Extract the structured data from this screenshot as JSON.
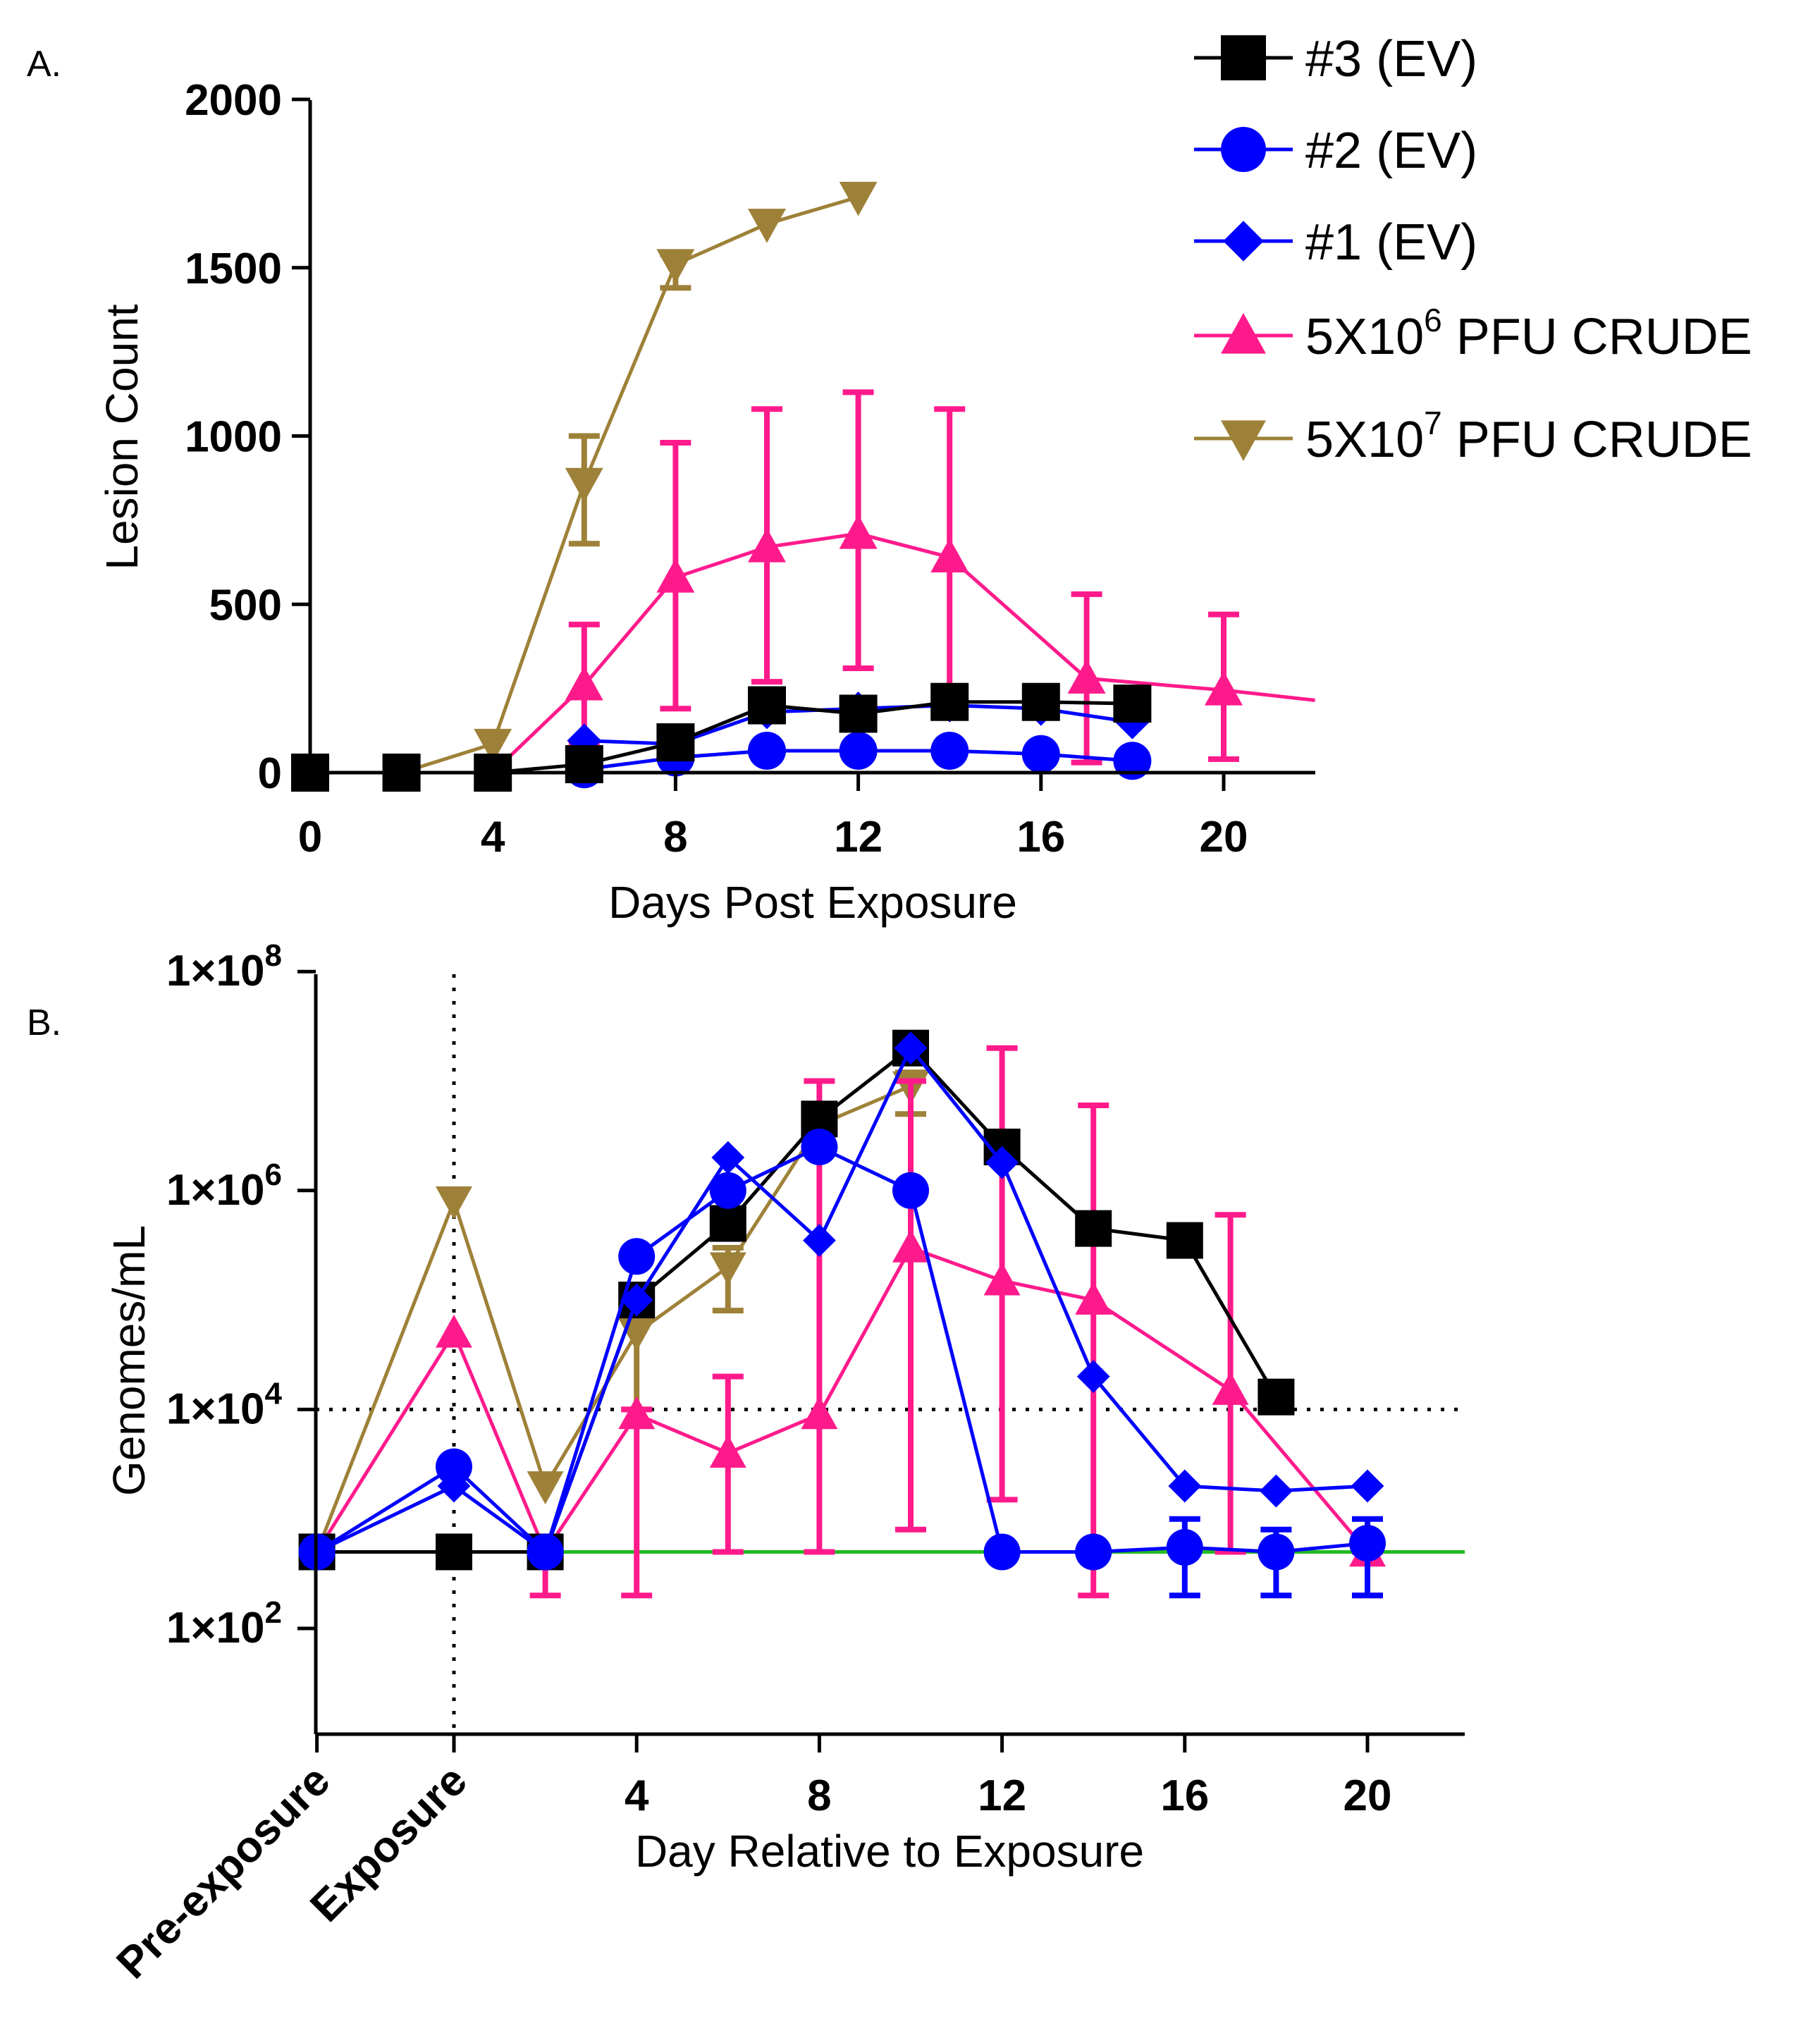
{
  "chart_data": [
    {
      "panel": "A.",
      "type": "line",
      "xlabel": "Days Post Exposure",
      "ylabel": "Lesion Count",
      "xlim": [
        0,
        22
      ],
      "ylim": [
        0,
        2000
      ],
      "xticks": [
        0,
        4,
        8,
        12,
        16,
        20
      ],
      "yticks": [
        0,
        500,
        1000,
        1500,
        2000
      ],
      "legend_position": "top-right",
      "series": [
        {
          "name": "#3 (EV)",
          "marker": "square",
          "color": "#000000",
          "points": [
            [
              0,
              0
            ],
            [
              2,
              0
            ],
            [
              4,
              0
            ],
            [
              6,
              25
            ],
            [
              8,
              90
            ],
            [
              10,
              200
            ],
            [
              12,
              175
            ],
            [
              14,
              210
            ],
            [
              16,
              210
            ],
            [
              18,
              205
            ]
          ]
        },
        {
          "name": "#2 (EV)",
          "marker": "circle",
          "color": "#0000ff",
          "points": [
            [
              6,
              10
            ],
            [
              8,
              45
            ],
            [
              10,
              65
            ],
            [
              12,
              65
            ],
            [
              14,
              65
            ],
            [
              16,
              55
            ],
            [
              18,
              35
            ]
          ]
        },
        {
          "name": "#1 (EV)",
          "marker": "diamond",
          "color": "#0000ff",
          "points": [
            [
              6,
              95
            ],
            [
              8,
              85
            ],
            [
              10,
              180
            ],
            [
              12,
              190
            ],
            [
              14,
              200
            ],
            [
              16,
              190
            ],
            [
              18,
              150
            ]
          ]
        },
        {
          "name_main": "5X10",
          "name_sup": "6",
          "name_rest": "  PFU CRUDE",
          "marker": "triangle-up",
          "color": "#ff1a8c",
          "points": [
            [
              4,
              0
            ],
            [
              6,
              260
            ],
            [
              8,
              580
            ],
            [
              10,
              670
            ],
            [
              12,
              710
            ],
            [
              14,
              640
            ],
            [
              17,
              280
            ],
            [
              20,
              245
            ],
            [
              22,
              215
            ]
          ],
          "errors": [
            null,
            [
              90,
              440
            ],
            [
              190,
              980
            ],
            [
              270,
              1080
            ],
            [
              310,
              1130
            ],
            [
              230,
              1080
            ],
            [
              30,
              530
            ],
            [
              40,
              470
            ],
            null
          ]
        },
        {
          "name_main": "5X10",
          "name_sup": "7",
          "name_rest": " PFU CRUDE",
          "marker": "triangle-down",
          "color": "#9e8138",
          "points": [
            [
              2,
              0
            ],
            [
              4,
              85
            ],
            [
              6,
              860
            ],
            [
              8,
              1510
            ],
            [
              10,
              1630
            ],
            [
              12,
              1710
            ]
          ],
          "errors": [
            null,
            null,
            [
              680,
              1000
            ],
            [
              1440,
              1540
            ],
            null,
            null
          ]
        }
      ]
    },
    {
      "panel": "B.",
      "type": "line",
      "xlabel": "Day Relative to Exposure",
      "ylabel": "Genomes/mL",
      "yscale": "log",
      "ylim": [
        10,
        100000000
      ],
      "xlim": [
        -6,
        22
      ],
      "category_ticks": [
        {
          "x": -3,
          "label": "Pre-exposure"
        },
        {
          "x": 0,
          "label": "Exposure"
        }
      ],
      "xticks": [
        4,
        8,
        12,
        16,
        20
      ],
      "ytick_labels": [
        {
          "value": 100000000,
          "mantissa": "1×10",
          "exp": "8"
        },
        {
          "value": 1000000,
          "mantissa": "1×10",
          "exp": "6"
        },
        {
          "value": 10000,
          "mantissa": "1×10",
          "exp": "4"
        },
        {
          "value": 100,
          "mantissa": "1×10",
          "exp": "2"
        }
      ],
      "reference_lines": [
        {
          "orientation": "horizontal",
          "value": 10000,
          "style": "dotted",
          "color": "#000000"
        },
        {
          "orientation": "horizontal",
          "value": 500,
          "style": "solid",
          "color": "#22bb22"
        },
        {
          "orientation": "vertical",
          "value": 0,
          "style": "dotted",
          "color": "#000000"
        }
      ],
      "series": [
        {
          "name": "#3 (EV)",
          "marker": "square",
          "color": "#000000",
          "points": [
            [
              -3,
              500
            ],
            [
              0,
              500
            ],
            [
              2,
              500
            ],
            [
              4,
              100000
            ],
            [
              6,
              500000
            ],
            [
              8,
              4500000
            ],
            [
              10,
              20000000
            ],
            [
              12,
              2500000
            ],
            [
              14,
              450000
            ],
            [
              16,
              350000
            ],
            [
              18,
              13000
            ]
          ]
        },
        {
          "name": "#2 (EV)",
          "marker": "circle",
          "color": "#0000ff",
          "points": [
            [
              -3,
              500
            ],
            [
              0,
              3000
            ],
            [
              2,
              500
            ],
            [
              4,
              250000
            ],
            [
              6,
              1000000
            ],
            [
              8,
              2500000
            ],
            [
              10,
              1000000
            ],
            [
              12,
              500
            ],
            [
              14,
              500
            ],
            [
              16,
              550
            ],
            [
              18,
              500
            ],
            [
              20,
              600
            ]
          ],
          "errors": [
            null,
            null,
            null,
            null,
            null,
            null,
            null,
            null,
            null,
            [
              200,
              1000
            ],
            [
              200,
              800
            ],
            [
              200,
              1000
            ]
          ]
        },
        {
          "name": "#1 (EV)",
          "marker": "diamond",
          "color": "#0000ff",
          "points": [
            [
              -3,
              500
            ],
            [
              0,
              2000
            ],
            [
              2,
              500
            ],
            [
              4,
              100000
            ],
            [
              6,
              2000000
            ],
            [
              8,
              350000
            ],
            [
              10,
              20000000
            ],
            [
              12,
              1800000
            ],
            [
              14,
              20000
            ],
            [
              16,
              2000
            ],
            [
              18,
              1800
            ],
            [
              20,
              2000
            ]
          ]
        },
        {
          "name": "5X10^6 PFU CRUDE",
          "marker": "triangle-up",
          "color": "#ff1a8c",
          "points": [
            [
              -3,
              500
            ],
            [
              0,
              50000
            ],
            [
              2,
              500
            ],
            [
              4,
              9000
            ],
            [
              6,
              4000
            ],
            [
              8,
              9000
            ],
            [
              10,
              300000
            ],
            [
              12,
              150000
            ],
            [
              14,
              100000
            ],
            [
              17,
              15000
            ],
            [
              20,
              500
            ]
          ],
          "errors": [
            null,
            null,
            [
              200,
              500
            ],
            [
              200,
              10000
            ],
            [
              500,
              20000
            ],
            [
              500,
              10000000
            ],
            [
              800,
              10000000
            ],
            [
              1500,
              20000000
            ],
            [
              200,
              6000000
            ],
            [
              500,
              600000
            ],
            [
              200,
              500
            ]
          ]
        },
        {
          "name": "5X10^7 PFU CRUDE",
          "marker": "triangle-down",
          "color": "#9e8138",
          "points": [
            [
              -3,
              500
            ],
            [
              0,
              800000
            ],
            [
              2,
              2000
            ],
            [
              4,
              50000
            ],
            [
              6,
              200000
            ],
            [
              8,
              4000000
            ],
            [
              10,
              9000000
            ]
          ],
          "errors": [
            null,
            null,
            null,
            [
              10000,
              100000
            ],
            [
              80000,
              300000
            ],
            null,
            [
              5000000,
              12000000
            ]
          ]
        }
      ]
    }
  ]
}
